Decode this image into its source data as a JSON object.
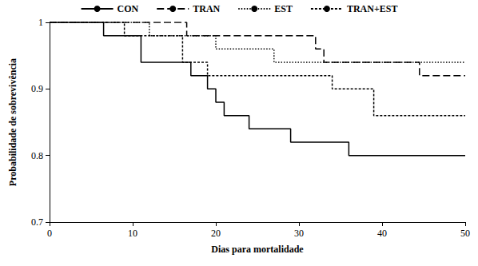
{
  "chart_data": {
    "type": "line",
    "x_label": "Dias para mortalidade",
    "y_label": "Probabilidade de sobrevivência",
    "xlim": [
      0,
      50
    ],
    "xticks": [
      0,
      10,
      20,
      30,
      40,
      50
    ],
    "ylim": [
      0.7,
      1
    ],
    "yticks": [
      0.7,
      0.8,
      0.9,
      1
    ],
    "legend": "top",
    "grid": false,
    "series": [
      {
        "name": "CON",
        "color": "#000000",
        "line_style": "solid",
        "x": [
          0,
          6.5,
          11,
          17,
          19,
          20,
          21,
          24,
          29,
          36,
          50
        ],
        "values": [
          1,
          0.98,
          0.94,
          0.92,
          0.9,
          0.88,
          0.86,
          0.84,
          0.82,
          0.8,
          0.8
        ]
      },
      {
        "name": "TRAN",
        "color": "#000000",
        "line_style": "long_dash",
        "x": [
          0,
          16.5,
          32,
          33,
          44.5,
          50
        ],
        "values": [
          1,
          0.98,
          0.96,
          0.94,
          0.92,
          0.92
        ]
      },
      {
        "name": "EST",
        "color": "#000000",
        "line_style": "dotted",
        "x": [
          0,
          12,
          20,
          27,
          50
        ],
        "values": [
          1,
          0.98,
          0.96,
          0.94,
          0.94
        ]
      },
      {
        "name": "TRAN+EST",
        "color": "#000000",
        "line_style": "short_dash",
        "x": [
          0,
          9,
          16,
          19,
          34,
          39,
          50
        ],
        "values": [
          1,
          0.98,
          0.94,
          0.92,
          0.9,
          0.86,
          0.86
        ]
      }
    ]
  }
}
